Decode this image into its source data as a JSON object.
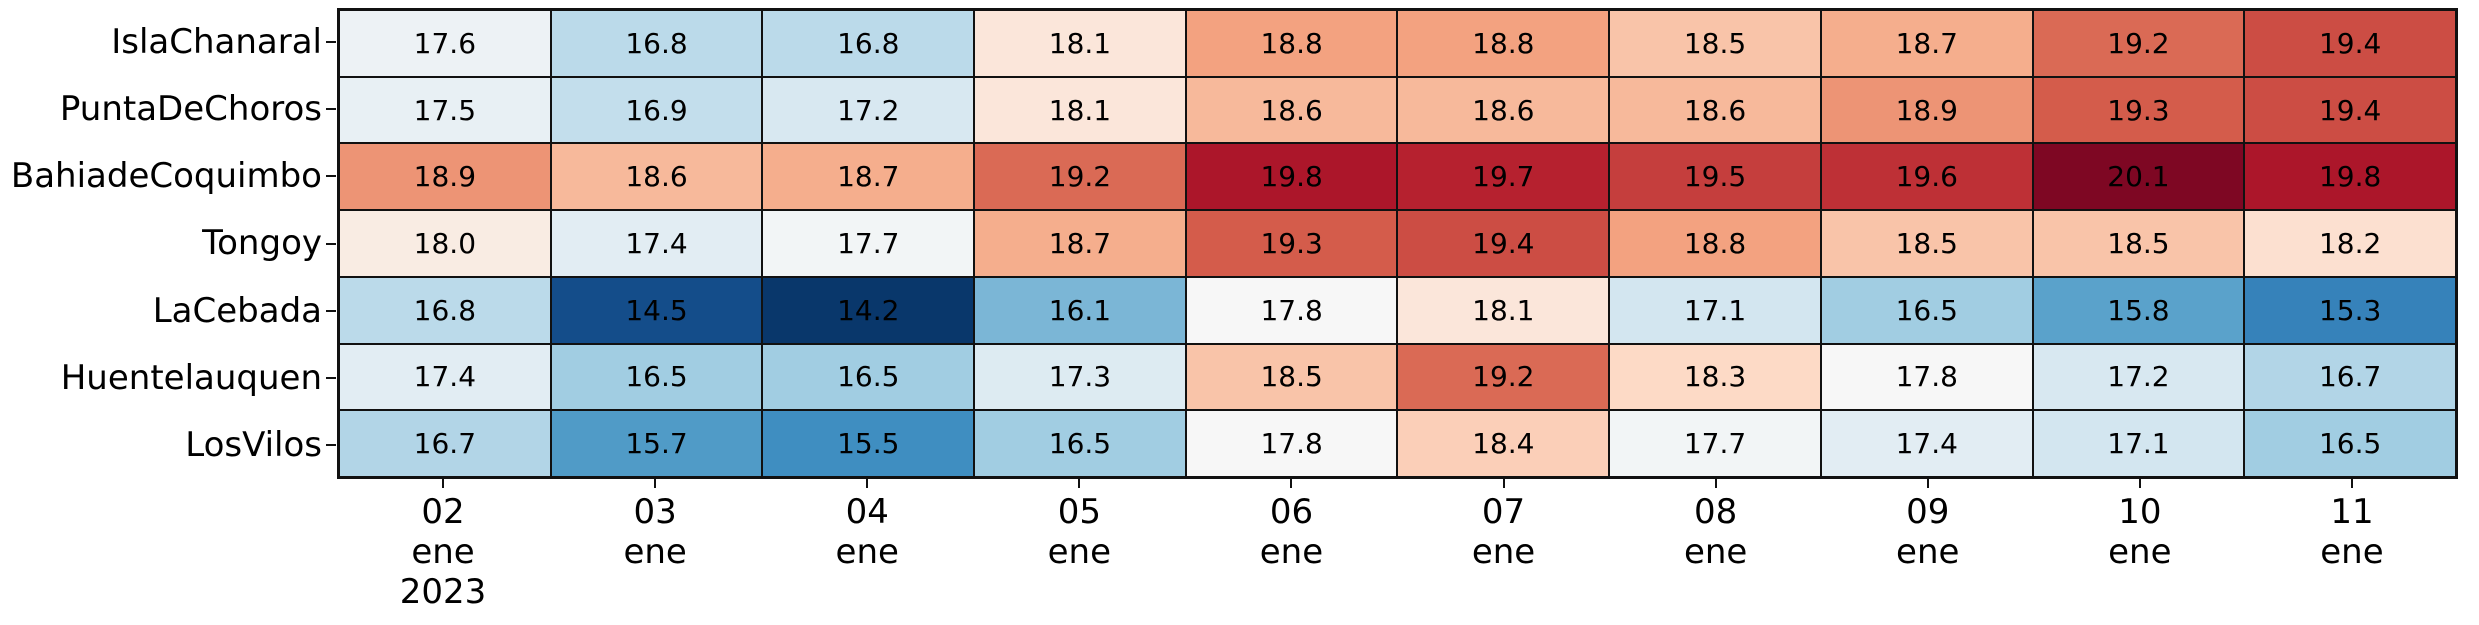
{
  "figure": {
    "background": "#ffffff",
    "grid_line_color": "#111111",
    "text_color": "#000000"
  },
  "chart_data": {
    "type": "heatmap",
    "title": "",
    "xlabel": "",
    "ylabel": "",
    "annotations_shown": true,
    "value_decimals": 1,
    "rows": [
      "IslaChanaral",
      "PuntaDeChoros",
      "BahiadeCoquimbo",
      "Tongoy",
      "LaCebada",
      "Huentelauquen",
      "LosVilos"
    ],
    "columns": [
      {
        "lines": [
          "02",
          "ene",
          "2023"
        ]
      },
      {
        "lines": [
          "03",
          "ene"
        ]
      },
      {
        "lines": [
          "04",
          "ene"
        ]
      },
      {
        "lines": [
          "05",
          "ene"
        ]
      },
      {
        "lines": [
          "06",
          "ene"
        ]
      },
      {
        "lines": [
          "07",
          "ene"
        ]
      },
      {
        "lines": [
          "08",
          "ene"
        ]
      },
      {
        "lines": [
          "09",
          "ene"
        ]
      },
      {
        "lines": [
          "10",
          "ene"
        ]
      },
      {
        "lines": [
          "11",
          "ene"
        ]
      }
    ],
    "values": [
      [
        17.6,
        16.8,
        16.8,
        18.1,
        18.8,
        18.8,
        18.5,
        18.7,
        19.2,
        19.4
      ],
      [
        17.5,
        16.9,
        17.2,
        18.1,
        18.6,
        18.6,
        18.6,
        18.9,
        19.3,
        19.4
      ],
      [
        18.9,
        18.6,
        18.7,
        19.2,
        19.8,
        19.7,
        19.5,
        19.6,
        20.1,
        19.8
      ],
      [
        18.0,
        17.4,
        17.7,
        18.7,
        19.3,
        19.4,
        18.8,
        18.5,
        18.5,
        18.2
      ],
      [
        16.8,
        14.5,
        14.2,
        16.1,
        17.8,
        18.1,
        17.1,
        16.5,
        15.8,
        15.3
      ],
      [
        17.4,
        16.5,
        16.5,
        17.3,
        18.5,
        19.2,
        18.3,
        17.8,
        17.2,
        16.7
      ],
      [
        16.7,
        15.7,
        15.5,
        16.5,
        17.8,
        18.4,
        17.7,
        17.4,
        17.1,
        16.5
      ]
    ],
    "value_min": 14.2,
    "value_max": 20.1,
    "colormap": {
      "name": "RdBu_r",
      "center": 17.8,
      "blue_span": 3.7,
      "red_span": 2.45,
      "blue_anchors": [
        "#f7f7f7",
        "#d1e5f0",
        "#92c5de",
        "#4393c3",
        "#2166ac",
        "#053061"
      ],
      "red_anchors": [
        "#f7f7f7",
        "#fddbc7",
        "#f4a582",
        "#d6604d",
        "#b2182b",
        "#67001f"
      ]
    },
    "cell_text_color": "#000000",
    "legend": "none",
    "grid_on": true
  }
}
